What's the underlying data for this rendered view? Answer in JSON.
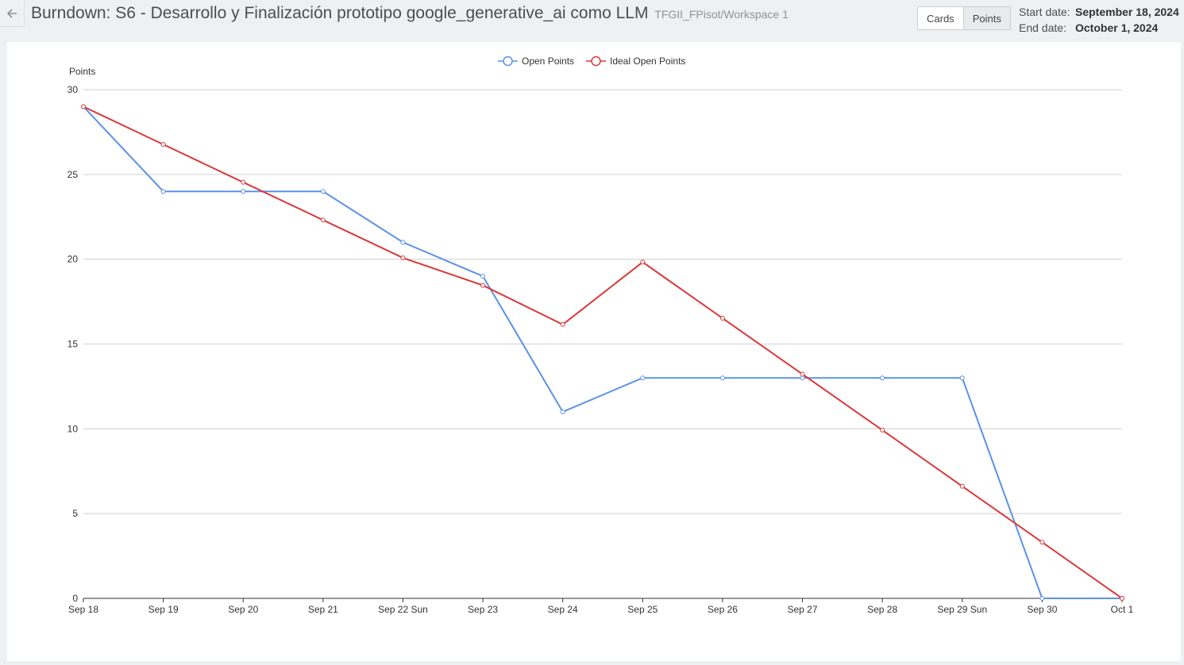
{
  "header": {
    "title": "Burndown: S6 - Desarrollo y Finalización prototipo google_generative_ai como LLM",
    "workspace": "TFGII_FPisot/Workspace 1",
    "back_icon": "arrow-left-icon"
  },
  "toggle": {
    "cards_label": "Cards",
    "points_label": "Points",
    "active": "Points"
  },
  "dates": {
    "start_label": "Start date:",
    "start_value": "September 18, 2024",
    "end_label": "End date:",
    "end_value": "October 1, 2024"
  },
  "chart_data": {
    "type": "line",
    "ylabel": "Points",
    "xlabel": "",
    "ylim": [
      0,
      30
    ],
    "yticks": [
      0,
      5,
      10,
      15,
      20,
      25,
      30
    ],
    "grid": true,
    "legend_position": "top-center",
    "categories": [
      "Sep 18",
      "Sep 19",
      "Sep 20",
      "Sep 21",
      "Sep 22 Sun",
      "Sep 23",
      "Sep 24",
      "Sep 25",
      "Sep 26",
      "Sep 27",
      "Sep 28",
      "Sep 29 Sun",
      "Sep 30",
      "Oct 1"
    ],
    "series": [
      {
        "name": "Open Points",
        "color": "#5b92e5",
        "values": [
          29,
          24,
          24,
          24,
          21,
          19,
          11,
          13,
          13,
          13,
          13,
          13,
          0,
          0
        ]
      },
      {
        "name": "Ideal Open Points",
        "color": "#d9393a",
        "values": [
          29,
          26.77,
          24.54,
          22.31,
          20.08,
          18.46,
          16.15,
          19.83,
          16.52,
          13.22,
          9.92,
          6.61,
          3.31,
          0
        ]
      }
    ]
  }
}
